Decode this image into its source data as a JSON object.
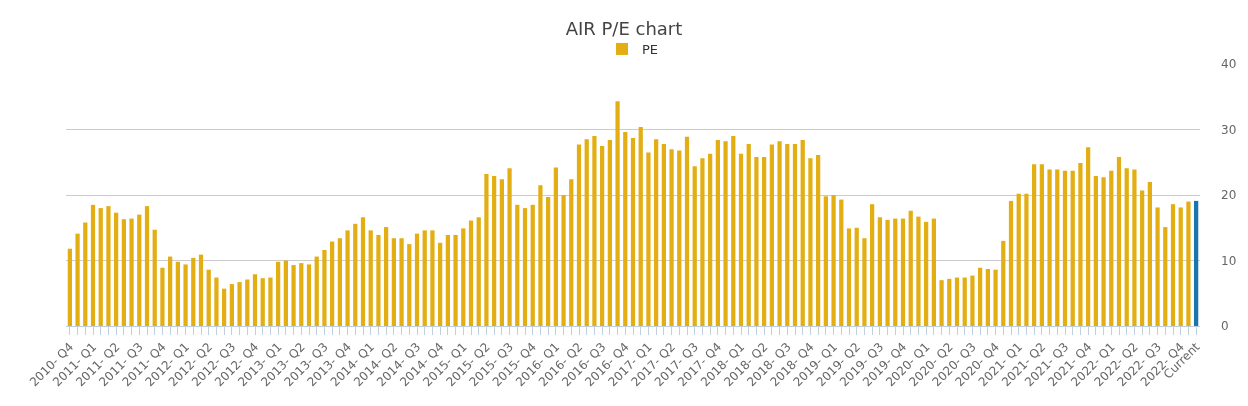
{
  "chart_data": {
    "type": "bar",
    "title": "AIR P/E chart",
    "categories": [
      "2010- Q4",
      null,
      null,
      "2011- Q1",
      null,
      null,
      "2011- Q2",
      null,
      null,
      "2011- Q3",
      null,
      null,
      "2011- Q4",
      null,
      null,
      "2012- Q1",
      null,
      null,
      "2012- Q2",
      null,
      null,
      "2012- Q3",
      null,
      null,
      "2012- Q4",
      null,
      null,
      "2013- Q1",
      null,
      null,
      "2013- Q2",
      null,
      null,
      "2013- Q3",
      null,
      null,
      "2013- Q4",
      null,
      null,
      "2014- Q1",
      null,
      null,
      "2014- Q2",
      null,
      null,
      "2014- Q3",
      null,
      null,
      "2014- Q4",
      null,
      null,
      "2015- Q1",
      null,
      null,
      "2015- Q2",
      null,
      null,
      "2015- Q3",
      null,
      null,
      "2015- Q4",
      null,
      null,
      "2016- Q1",
      null,
      null,
      "2016- Q2",
      null,
      null,
      "2016- Q3",
      null,
      null,
      "2016- Q4",
      null,
      null,
      "2017- Q1",
      null,
      null,
      "2017- Q2",
      null,
      null,
      "2017- Q3",
      null,
      null,
      "2017- Q4",
      null,
      null,
      "2018- Q1",
      null,
      null,
      "2018- Q2",
      null,
      null,
      "2018- Q3",
      null,
      null,
      "2018- Q4",
      null,
      null,
      "2019- Q1",
      null,
      null,
      "2019- Q2",
      null,
      null,
      "2019- Q3",
      null,
      null,
      "2019- Q4",
      null,
      null,
      "2020- Q1",
      null,
      null,
      "2020- Q2",
      null,
      null,
      "2020- Q3",
      null,
      null,
      "2020- Q4",
      null,
      null,
      "2021- Q1",
      null,
      null,
      "2021- Q2",
      null,
      null,
      "2021- Q3",
      null,
      null,
      "2021- Q4",
      null,
      null,
      "2022- Q1",
      null,
      null,
      "2022- Q2",
      null,
      null,
      "2022- Q3",
      null,
      null,
      "2022- Q4",
      null,
      "Current"
    ],
    "series": [
      {
        "name": "PE",
        "colors": [
          "#e2ae14",
          "#e2ae14",
          "#e2ae14",
          "#e2ae14",
          "#e2ae14",
          "#e2ae14",
          "#e2ae14",
          "#e2ae14",
          "#e2ae14",
          "#e2ae14",
          "#e2ae14",
          "#e2ae14",
          "#e2ae14",
          "#e2ae14",
          "#e2ae14",
          "#e2ae14",
          "#e2ae14",
          "#e2ae14",
          "#e2ae14",
          "#e2ae14",
          "#e2ae14",
          "#e2ae14",
          "#e2ae14",
          "#e2ae14",
          "#e2ae14",
          "#e2ae14",
          "#e2ae14",
          "#e2ae14",
          "#e2ae14",
          "#e2ae14",
          "#e2ae14",
          "#e2ae14",
          "#e2ae14",
          "#e2ae14",
          "#e2ae14",
          "#e2ae14",
          "#e2ae14",
          "#e2ae14",
          "#e2ae14",
          "#e2ae14",
          "#e2ae14",
          "#e2ae14",
          "#e2ae14",
          "#e2ae14",
          "#e2ae14",
          "#e2ae14",
          "#e2ae14",
          "#e2ae14",
          "#e2ae14",
          "#e2ae14",
          "#e2ae14",
          "#e2ae14",
          "#e2ae14",
          "#e2ae14",
          "#e2ae14",
          "#e2ae14",
          "#e2ae14",
          "#e2ae14",
          "#e2ae14",
          "#e2ae14",
          "#e2ae14",
          "#e2ae14",
          "#e2ae14",
          "#e2ae14",
          "#e2ae14",
          "#e2ae14",
          "#e2ae14",
          "#e2ae14",
          "#e2ae14",
          "#e2ae14",
          "#e2ae14",
          "#e2ae14",
          "#e2ae14",
          "#e2ae14",
          "#e2ae14",
          "#e2ae14",
          "#e2ae14",
          "#e2ae14",
          "#e2ae14",
          "#e2ae14",
          "#e2ae14",
          "#e2ae14",
          "#e2ae14",
          "#e2ae14",
          "#e2ae14",
          "#e2ae14",
          "#e2ae14",
          "#e2ae14",
          "#e2ae14",
          "#e2ae14",
          "#e2ae14",
          "#e2ae14",
          "#e2ae14",
          "#e2ae14",
          "#e2ae14",
          "#e2ae14",
          "#e2ae14",
          "#e2ae14",
          "#e2ae14",
          "#e2ae14",
          "#e2ae14",
          "#e2ae14",
          "#e2ae14",
          "#e2ae14",
          "#e2ae14",
          "#e2ae14",
          "#e2ae14",
          "#e2ae14",
          "#e2ae14",
          "#e2ae14",
          "#e2ae14",
          "#e2ae14",
          "#e2ae14",
          "#e2ae14",
          "#e2ae14",
          "#e2ae14",
          "#e2ae14",
          "#e2ae14",
          "#e2ae14",
          "#e2ae14",
          "#e2ae14",
          "#e2ae14",
          "#e2ae14",
          "#e2ae14",
          "#e2ae14",
          "#e2ae14",
          "#e2ae14",
          "#e2ae14",
          "#e2ae14",
          "#e2ae14",
          "#e2ae14",
          "#e2ae14",
          "#e2ae14",
          "#e2ae14",
          "#e2ae14",
          "#e2ae14",
          "#e2ae14",
          "#e2ae14",
          "#e2ae14",
          "#e2ae14",
          "#e2ae14",
          "#e2ae14",
          "#e2ae14",
          "#e2ae14",
          "#e2ae14",
          "#e2ae14",
          "#1a75b0"
        ],
        "values": [
          11.8,
          14.1,
          15.8,
          18.5,
          18.0,
          18.3,
          17.3,
          16.3,
          16.4,
          17.0,
          18.3,
          14.7,
          8.9,
          10.6,
          9.8,
          9.4,
          10.4,
          10.9,
          8.6,
          7.4,
          5.7,
          6.4,
          6.7,
          7.1,
          7.9,
          7.3,
          7.4,
          9.8,
          10.0,
          9.3,
          9.6,
          9.4,
          10.6,
          11.6,
          12.9,
          13.4,
          14.6,
          15.6,
          16.6,
          14.6,
          13.9,
          15.1,
          13.4,
          13.4,
          12.5,
          14.1,
          14.6,
          14.6,
          12.7,
          13.9,
          13.9,
          14.9,
          16.1,
          16.6,
          23.2,
          22.9,
          22.4,
          24.1,
          18.5,
          18.0,
          18.5,
          21.5,
          19.7,
          24.2,
          20.0,
          22.4,
          27.7,
          28.5,
          29.0,
          27.5,
          28.4,
          34.3,
          29.6,
          28.7,
          30.4,
          26.5,
          28.5,
          27.8,
          27.0,
          26.8,
          28.9,
          24.4,
          25.6,
          26.3,
          28.4,
          28.2,
          29.0,
          26.3,
          27.8,
          25.8,
          25.8,
          27.7,
          28.2,
          27.8,
          27.8,
          28.4,
          25.6,
          26.1,
          19.8,
          20.0,
          19.3,
          14.9,
          15.0,
          13.4,
          18.6,
          16.6,
          16.2,
          16.4,
          16.4,
          17.6,
          16.7,
          15.9,
          16.4,
          7.0,
          7.2,
          7.4,
          7.4,
          7.7,
          8.9,
          8.7,
          8.6,
          13.0,
          19.1,
          20.2,
          20.2,
          24.7,
          24.7,
          23.9,
          23.9,
          23.7,
          23.7,
          24.9,
          27.3,
          22.9,
          22.7,
          23.7,
          25.8,
          24.1,
          23.9,
          20.7,
          22.0,
          18.1,
          15.1,
          18.6,
          18.1,
          19.0,
          19.1
        ]
      }
    ],
    "ylim": [
      0,
      40
    ],
    "yticks": [
      0,
      10,
      20,
      30,
      40
    ],
    "grid": "y",
    "legend": "top"
  }
}
